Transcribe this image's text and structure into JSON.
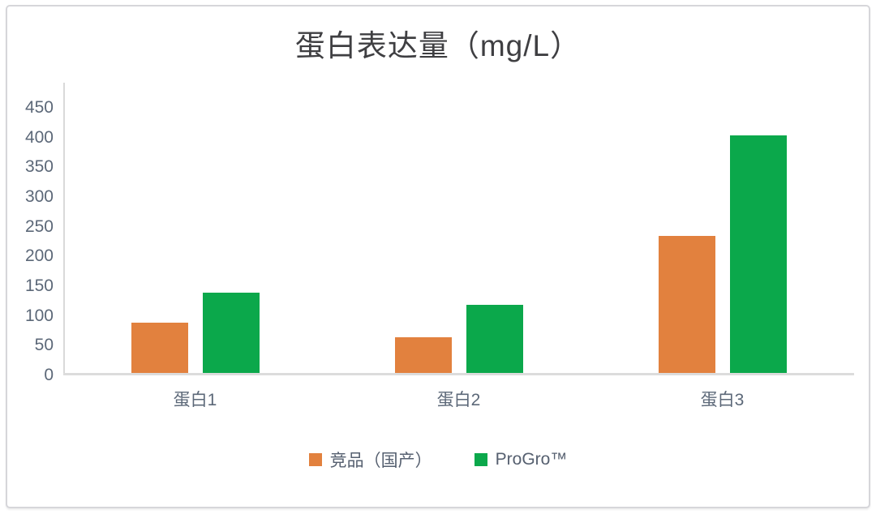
{
  "chart_data": {
    "type": "bar",
    "title": "蛋白表达量（mg/L）",
    "categories": [
      "蛋白1",
      "蛋白2",
      "蛋白3"
    ],
    "series": [
      {
        "name": "竞品（国产）",
        "color": "#E2813E",
        "values": [
          85,
          60,
          230
        ]
      },
      {
        "name": "ProGro™",
        "color": "#0BA84B",
        "values": [
          135,
          115,
          400
        ]
      }
    ],
    "ylim": [
      0,
      450
    ],
    "yticks": [
      0,
      50,
      100,
      150,
      200,
      250,
      300,
      350,
      400,
      450
    ],
    "grid": false,
    "legend_position": "bottom"
  },
  "styles": {
    "title_color": "#3f3f42",
    "axis_label_color": "#5c6878",
    "legend_text_color": "#566070",
    "axis_line_color": "#d9d9d9",
    "card_border_color": "#d6d6da",
    "background": "#ffffff"
  }
}
